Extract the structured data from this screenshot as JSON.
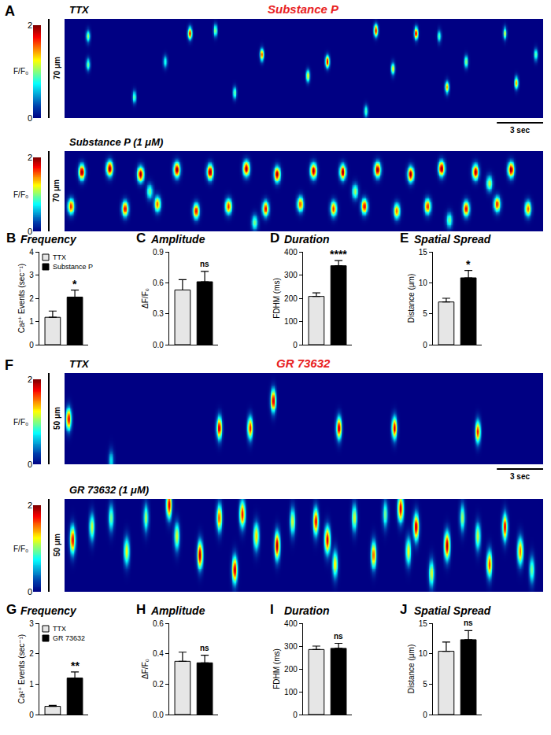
{
  "chart_data": [
    {
      "type": "linescan",
      "panel": "A",
      "subtitle": "Substance P",
      "title": "TTX",
      "xlim": [
        0,
        31
      ],
      "ylim": [
        0,
        70
      ],
      "tick_labels": false,
      "scale_bar_x": {
        "value": 3,
        "label": "3 sec"
      },
      "scale_bar_y": {
        "value": 70,
        "label": "70 μm"
      },
      "colorbar": {
        "range": [
          0,
          2
        ],
        "ticks": [
          0,
          2
        ],
        "label": "F/F₀"
      },
      "event_duration": 0.2,
      "event_spread": 7,
      "events": {
        "t": [
          1.5,
          1.5,
          4.5,
          6.5,
          8.1,
          9.75,
          11,
          12.75,
          15.75,
          17,
          19.5,
          20.15,
          21.25,
          22.75,
          24.25,
          24.75,
          26,
          28.5,
          29.25,
          30.5
        ],
        "pos": [
          58,
          38,
          15,
          40,
          60,
          62,
          18,
          45,
          30,
          40,
          5,
          62,
          35,
          60,
          58,
          22,
          40,
          60,
          25,
          45
        ],
        "peak": [
          1.2,
          1.1,
          1.0,
          0.9,
          2.0,
          1.1,
          1.0,
          1.7,
          1.3,
          2.0,
          1.0,
          2.0,
          1.3,
          1.9,
          1.0,
          1.6,
          1.1,
          1.2,
          1.6,
          1.0
        ]
      }
    },
    {
      "type": "linescan",
      "title": "Substance P (1 μM)",
      "xlim": [
        0,
        31
      ],
      "ylim": [
        0,
        70
      ],
      "tick_labels": false,
      "scale_bar_y": {
        "value": 70,
        "label": "70 μm"
      },
      "colorbar": {
        "range": [
          0,
          2
        ],
        "ticks": [
          0,
          2
        ],
        "label": "F/F₀"
      },
      "event_duration": 0.34,
      "event_spread": 11,
      "events": {
        "t": [
          1.1,
          2.9,
          4.9,
          7.25,
          9.4,
          11.75,
          13.75,
          16.1,
          18,
          20.25,
          22.4,
          24.4,
          26.6,
          28.9,
          0.4,
          3.9,
          6,
          8.5,
          10.6,
          13,
          15.25,
          17.4,
          19.4,
          21.5,
          23.5,
          26,
          28,
          30,
          5.5,
          12.3,
          18.8,
          24.9,
          27.5
        ],
        "pos": [
          52,
          55,
          50,
          54,
          52,
          55,
          50,
          53,
          52,
          54,
          50,
          55,
          52,
          54,
          22,
          20,
          24,
          18,
          22,
          20,
          24,
          20,
          22,
          18,
          22,
          20,
          24,
          20,
          35,
          8,
          35,
          10,
          42
        ],
        "peak": [
          2.0,
          2.0,
          2.0,
          2.0,
          2.0,
          2.0,
          2.0,
          2.0,
          2.0,
          2.0,
          2.0,
          2.0,
          2.0,
          2.0,
          1.7,
          1.8,
          1.6,
          1.8,
          1.7,
          1.8,
          1.6,
          1.7,
          1.8,
          1.6,
          1.7,
          1.8,
          1.7,
          1.6,
          1.0,
          1.0,
          1.1,
          1.0,
          1.2
        ]
      }
    },
    {
      "type": "bar",
      "panel": "B",
      "title": "Frequency",
      "ylabel": "Ca²⁺ Events (sec⁻¹)",
      "ylim": [
        0,
        4
      ],
      "yticks": [
        0,
        1,
        2,
        3,
        4
      ],
      "tick_labels": "y",
      "legend": "upper left",
      "series": [
        {
          "name": "TTX",
          "color": "#e6e6e6",
          "values": [
            1.18
          ],
          "errors": [
            0.27
          ]
        },
        {
          "name": "Substance P",
          "color": "#000000",
          "values": [
            2.05
          ],
          "errors": [
            0.3
          ]
        }
      ],
      "significance": "*"
    },
    {
      "type": "bar",
      "panel": "C",
      "title": "Amplitude",
      "ylabel": "ΔF/F₀",
      "ylim": [
        0,
        0.9
      ],
      "yticks": [
        {
          "value": 0,
          "label": "0.0"
        },
        0.3,
        0.6,
        0.9
      ],
      "tick_labels": "y",
      "series": [
        {
          "name": "TTX",
          "color": "#e6e6e6",
          "values": [
            0.53
          ],
          "errors": [
            0.1
          ]
        },
        {
          "name": "Substance P",
          "color": "#000000",
          "values": [
            0.61
          ],
          "errors": [
            0.1
          ]
        }
      ],
      "significance": "ns"
    },
    {
      "type": "bar",
      "panel": "D",
      "title": "Duration",
      "ylabel": "FDHM (ms)",
      "ylim": [
        0,
        400
      ],
      "yticks": [
        0,
        100,
        200,
        300,
        400
      ],
      "tick_labels": "y",
      "series": [
        {
          "name": "TTX",
          "color": "#e6e6e6",
          "values": [
            208
          ],
          "errors": [
            15
          ]
        },
        {
          "name": "Substance P",
          "color": "#000000",
          "values": [
            340
          ],
          "errors": [
            22
          ]
        }
      ],
      "significance": "****"
    },
    {
      "type": "bar",
      "panel": "E",
      "title": "Spatial Spread",
      "ylabel": "Distance (μm)",
      "ylim": [
        0,
        15
      ],
      "yticks": [
        0,
        5,
        10,
        15
      ],
      "tick_labels": "y",
      "series": [
        {
          "name": "TTX",
          "color": "#e6e6e6",
          "values": [
            6.9
          ],
          "errors": [
            0.6
          ]
        },
        {
          "name": "Substance P",
          "color": "#000000",
          "values": [
            10.8
          ],
          "errors": [
            1.2
          ]
        }
      ],
      "significance": "*"
    },
    {
      "type": "linescan",
      "panel": "F",
      "subtitle": "GR 73632",
      "title": "TTX",
      "xlim": [
        0,
        31
      ],
      "ylim": [
        0,
        50
      ],
      "tick_labels": false,
      "scale_bar_x": {
        "value": 3,
        "label": "3 sec"
      },
      "scale_bar_y": {
        "value": 50,
        "label": "50 μm"
      },
      "colorbar": {
        "range": [
          0,
          2
        ],
        "ticks": [
          0,
          2
        ],
        "label": "F/F₀"
      },
      "event_duration": 0.28,
      "event_spread": 10,
      "events": {
        "t": [
          0.25,
          3,
          10,
          12,
          13.5,
          17.75,
          21.35,
          26.75
        ],
        "pos": [
          25,
          2,
          20,
          20,
          35,
          20,
          20,
          18
        ],
        "peak": [
          1.8,
          0.7,
          1.9,
          1.8,
          1.9,
          1.9,
          1.9,
          1.8
        ]
      }
    },
    {
      "type": "linescan",
      "title": "GR 73632 (1 μM)",
      "xlim": [
        0,
        31
      ],
      "ylim": [
        0,
        50
      ],
      "tick_labels": false,
      "scale_bar_y": {
        "value": 50,
        "label": "50 μm"
      },
      "colorbar": {
        "range": [
          0,
          2
        ],
        "ticks": [
          0,
          2
        ],
        "label": "F/F₀"
      },
      "event_duration": 0.29,
      "event_spread": 12,
      "events": {
        "t": [
          0.5,
          1.75,
          3,
          4,
          5.25,
          6.75,
          7.25,
          8.75,
          10,
          11,
          11.5,
          12.4,
          13.75,
          14.75,
          16.25,
          17,
          17.5,
          18.75,
          20,
          20.75,
          21.75,
          22.25,
          22.75,
          23.75,
          24.75,
          25.75,
          26.75,
          27.5,
          28.5,
          29.5,
          30.25
        ],
        "pos": [
          28,
          35,
          40,
          22,
          40,
          47,
          30,
          20,
          40,
          12,
          42,
          30,
          25,
          38,
          38,
          28,
          15,
          40,
          20,
          42,
          45,
          22,
          35,
          10,
          25,
          40,
          30,
          15,
          35,
          22,
          12
        ],
        "peak": [
          1.8,
          1.2,
          1.0,
          1.3,
          1.1,
          1.9,
          1.2,
          2.0,
          1.6,
          1.9,
          1.8,
          1.4,
          2.0,
          1.2,
          1.8,
          1.9,
          1.3,
          1.2,
          1.6,
          1.0,
          1.9,
          1.3,
          1.9,
          1.2,
          2.0,
          1.1,
          1.2,
          1.7,
          1.8,
          1.6,
          1.0
        ]
      }
    },
    {
      "type": "bar",
      "panel": "G",
      "title": "Frequency",
      "ylabel": "Ca²⁺ Events (sec⁻¹)",
      "ylim": [
        0,
        3
      ],
      "yticks": [
        0,
        1,
        2,
        3
      ],
      "tick_labels": "y",
      "legend": "upper left",
      "series": [
        {
          "name": "TTX",
          "color": "#e6e6e6",
          "values": [
            0.27
          ],
          "errors": [
            0.03
          ]
        },
        {
          "name": "GR 73632",
          "color": "#000000",
          "values": [
            1.2
          ],
          "errors": [
            0.2
          ]
        }
      ],
      "significance": "**"
    },
    {
      "type": "bar",
      "panel": "H",
      "title": "Amplitude",
      "ylabel": "ΔF/F₀",
      "ylim": [
        0,
        0.6
      ],
      "yticks": [
        {
          "value": 0,
          "label": "0.0"
        },
        0.2,
        0.4,
        0.6
      ],
      "tick_labels": "y",
      "series": [
        {
          "name": "TTX",
          "color": "#e6e6e6",
          "values": [
            0.35
          ],
          "errors": [
            0.06
          ]
        },
        {
          "name": "GR 73632",
          "color": "#000000",
          "values": [
            0.34
          ],
          "errors": [
            0.05
          ]
        }
      ],
      "significance": "ns"
    },
    {
      "type": "bar",
      "panel": "I",
      "title": "Duration",
      "ylabel": "FDHM (ms)",
      "ylim": [
        0,
        400
      ],
      "yticks": [
        0,
        100,
        200,
        300,
        400
      ],
      "tick_labels": "y",
      "series": [
        {
          "name": "TTX",
          "color": "#e6e6e6",
          "values": [
            285
          ],
          "errors": [
            15
          ]
        },
        {
          "name": "GR 73632",
          "color": "#000000",
          "values": [
            290
          ],
          "errors": [
            22
          ]
        }
      ],
      "significance": "ns"
    },
    {
      "type": "bar",
      "panel": "J",
      "title": "Spatial Spread",
      "ylabel": "Distance (μm)",
      "ylim": [
        0,
        15
      ],
      "yticks": [
        0,
        5,
        10,
        15
      ],
      "tick_labels": "y",
      "series": [
        {
          "name": "TTX",
          "color": "#e6e6e6",
          "values": [
            10.4
          ],
          "errors": [
            1.5
          ]
        },
        {
          "name": "GR 73632",
          "color": "#000000",
          "values": [
            12.3
          ],
          "errors": [
            1.5
          ]
        }
      ],
      "significance": "ns"
    }
  ]
}
